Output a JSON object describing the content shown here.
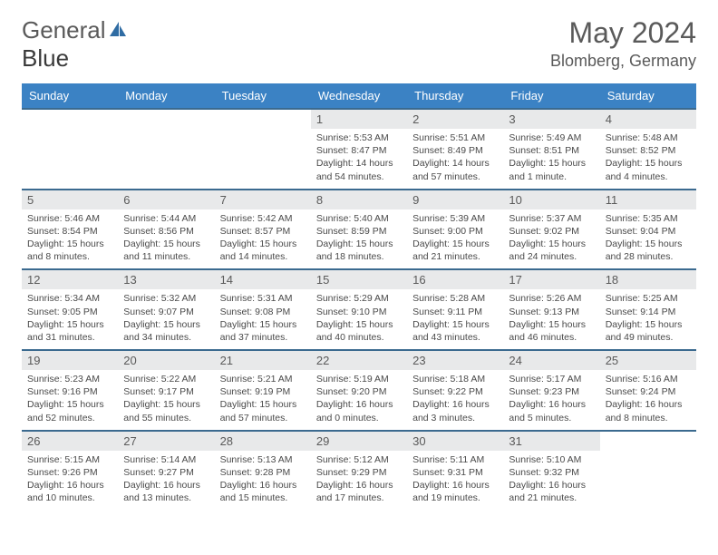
{
  "logo": {
    "text1": "General",
    "text2": "Blue"
  },
  "title": "May 2024",
  "location": "Blomberg, Germany",
  "dayNames": [
    "Sunday",
    "Monday",
    "Tuesday",
    "Wednesday",
    "Thursday",
    "Friday",
    "Saturday"
  ],
  "colors": {
    "headerBg": "#3b82c4",
    "headerText": "#ffffff",
    "rowBorder": "#3b6a8f",
    "dayNumBg": "#e8e9ea",
    "textGray": "#5a5a5a",
    "logoAccent": "#2f6ca3"
  },
  "weeks": [
    [
      null,
      null,
      null,
      {
        "n": "1",
        "sr": "5:53 AM",
        "ss": "8:47 PM",
        "dl": "14 hours and 54 minutes."
      },
      {
        "n": "2",
        "sr": "5:51 AM",
        "ss": "8:49 PM",
        "dl": "14 hours and 57 minutes."
      },
      {
        "n": "3",
        "sr": "5:49 AM",
        "ss": "8:51 PM",
        "dl": "15 hours and 1 minute."
      },
      {
        "n": "4",
        "sr": "5:48 AM",
        "ss": "8:52 PM",
        "dl": "15 hours and 4 minutes."
      }
    ],
    [
      {
        "n": "5",
        "sr": "5:46 AM",
        "ss": "8:54 PM",
        "dl": "15 hours and 8 minutes."
      },
      {
        "n": "6",
        "sr": "5:44 AM",
        "ss": "8:56 PM",
        "dl": "15 hours and 11 minutes."
      },
      {
        "n": "7",
        "sr": "5:42 AM",
        "ss": "8:57 PM",
        "dl": "15 hours and 14 minutes."
      },
      {
        "n": "8",
        "sr": "5:40 AM",
        "ss": "8:59 PM",
        "dl": "15 hours and 18 minutes."
      },
      {
        "n": "9",
        "sr": "5:39 AM",
        "ss": "9:00 PM",
        "dl": "15 hours and 21 minutes."
      },
      {
        "n": "10",
        "sr": "5:37 AM",
        "ss": "9:02 PM",
        "dl": "15 hours and 24 minutes."
      },
      {
        "n": "11",
        "sr": "5:35 AM",
        "ss": "9:04 PM",
        "dl": "15 hours and 28 minutes."
      }
    ],
    [
      {
        "n": "12",
        "sr": "5:34 AM",
        "ss": "9:05 PM",
        "dl": "15 hours and 31 minutes."
      },
      {
        "n": "13",
        "sr": "5:32 AM",
        "ss": "9:07 PM",
        "dl": "15 hours and 34 minutes."
      },
      {
        "n": "14",
        "sr": "5:31 AM",
        "ss": "9:08 PM",
        "dl": "15 hours and 37 minutes."
      },
      {
        "n": "15",
        "sr": "5:29 AM",
        "ss": "9:10 PM",
        "dl": "15 hours and 40 minutes."
      },
      {
        "n": "16",
        "sr": "5:28 AM",
        "ss": "9:11 PM",
        "dl": "15 hours and 43 minutes."
      },
      {
        "n": "17",
        "sr": "5:26 AM",
        "ss": "9:13 PM",
        "dl": "15 hours and 46 minutes."
      },
      {
        "n": "18",
        "sr": "5:25 AM",
        "ss": "9:14 PM",
        "dl": "15 hours and 49 minutes."
      }
    ],
    [
      {
        "n": "19",
        "sr": "5:23 AM",
        "ss": "9:16 PM",
        "dl": "15 hours and 52 minutes."
      },
      {
        "n": "20",
        "sr": "5:22 AM",
        "ss": "9:17 PM",
        "dl": "15 hours and 55 minutes."
      },
      {
        "n": "21",
        "sr": "5:21 AM",
        "ss": "9:19 PM",
        "dl": "15 hours and 57 minutes."
      },
      {
        "n": "22",
        "sr": "5:19 AM",
        "ss": "9:20 PM",
        "dl": "16 hours and 0 minutes."
      },
      {
        "n": "23",
        "sr": "5:18 AM",
        "ss": "9:22 PM",
        "dl": "16 hours and 3 minutes."
      },
      {
        "n": "24",
        "sr": "5:17 AM",
        "ss": "9:23 PM",
        "dl": "16 hours and 5 minutes."
      },
      {
        "n": "25",
        "sr": "5:16 AM",
        "ss": "9:24 PM",
        "dl": "16 hours and 8 minutes."
      }
    ],
    [
      {
        "n": "26",
        "sr": "5:15 AM",
        "ss": "9:26 PM",
        "dl": "16 hours and 10 minutes."
      },
      {
        "n": "27",
        "sr": "5:14 AM",
        "ss": "9:27 PM",
        "dl": "16 hours and 13 minutes."
      },
      {
        "n": "28",
        "sr": "5:13 AM",
        "ss": "9:28 PM",
        "dl": "16 hours and 15 minutes."
      },
      {
        "n": "29",
        "sr": "5:12 AM",
        "ss": "9:29 PM",
        "dl": "16 hours and 17 minutes."
      },
      {
        "n": "30",
        "sr": "5:11 AM",
        "ss": "9:31 PM",
        "dl": "16 hours and 19 minutes."
      },
      {
        "n": "31",
        "sr": "5:10 AM",
        "ss": "9:32 PM",
        "dl": "16 hours and 21 minutes."
      },
      null
    ]
  ],
  "labels": {
    "sunrise": "Sunrise:",
    "sunset": "Sunset:",
    "daylight": "Daylight:"
  }
}
